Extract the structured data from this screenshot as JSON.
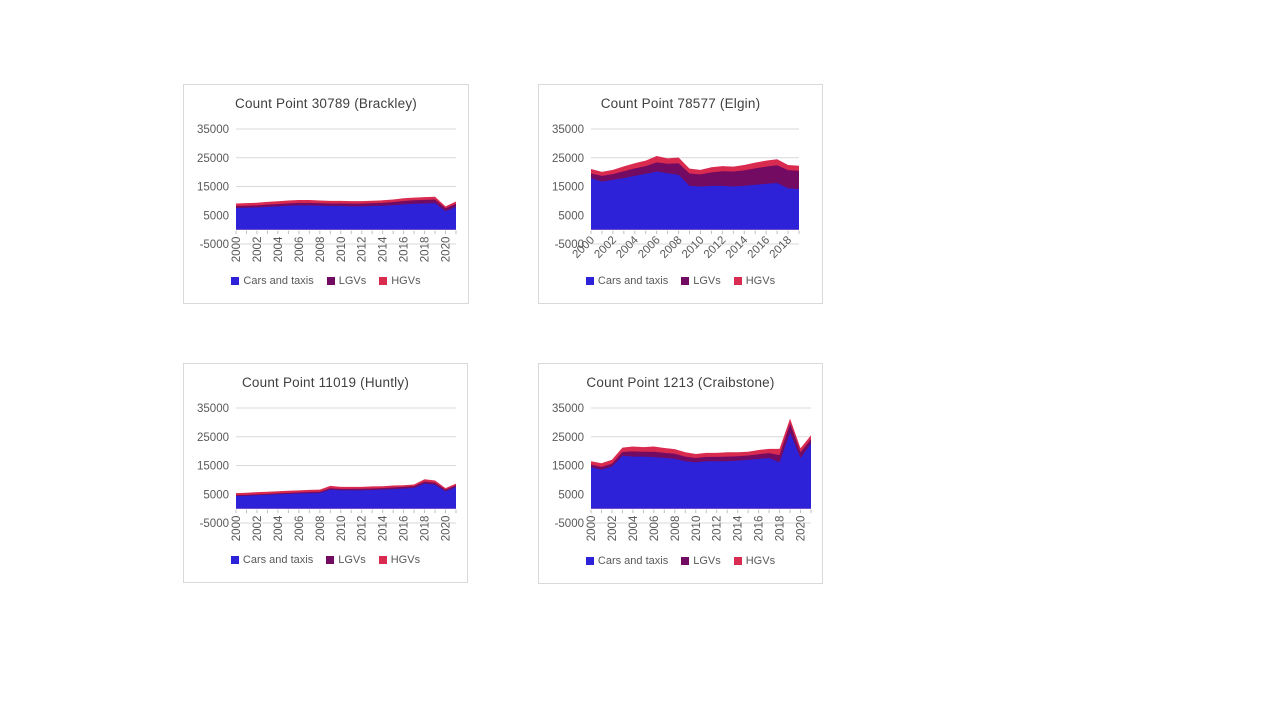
{
  "page": {
    "background": "#ffffff"
  },
  "colors": {
    "cars": "#2d22d8",
    "lgvs": "#740b63",
    "hgvs": "#d92a50",
    "grid": "#d9d9d9",
    "tick": "#bfbfbf",
    "axis_text": "#595959",
    "title_text": "#404040",
    "chart_border": "#d9d9d9"
  },
  "chart_data": [
    {
      "type": "area",
      "stacked": true,
      "title": "Count Point 30789 (Brackley)",
      "x": [
        2000,
        2001,
        2002,
        2003,
        2004,
        2005,
        2006,
        2007,
        2008,
        2009,
        2010,
        2011,
        2012,
        2013,
        2014,
        2015,
        2016,
        2017,
        2018,
        2019,
        2020,
        2021
      ],
      "series": [
        {
          "name": "Cars and taxis",
          "color": "#2d22d8",
          "values": [
            7500,
            7600,
            7700,
            7900,
            8100,
            8300,
            8400,
            8400,
            8300,
            8200,
            8200,
            8100,
            8100,
            8200,
            8300,
            8500,
            8800,
            9000,
            9100,
            9200,
            6400,
            7900
          ]
        },
        {
          "name": "LGVs",
          "color": "#740b63",
          "values": [
            700,
            700,
            750,
            800,
            800,
            850,
            900,
            900,
            900,
            900,
            900,
            950,
            950,
            1000,
            1000,
            1100,
            1150,
            1200,
            1250,
            1300,
            1000,
            1100
          ]
        },
        {
          "name": "HGVs",
          "color": "#d92a50",
          "values": [
            900,
            900,
            900,
            950,
            950,
            1000,
            1000,
            1000,
            950,
            900,
            900,
            850,
            850,
            850,
            900,
            900,
            950,
            950,
            950,
            950,
            700,
            800
          ]
        }
      ],
      "ylim": [
        -5000,
        35000
      ],
      "yticks": [
        35000,
        25000,
        15000,
        5000,
        -5000
      ],
      "xtick_labels": [
        "2000",
        "2002",
        "2004",
        "2006",
        "2008",
        "2010",
        "2012",
        "2014",
        "2016",
        "2018",
        "2020"
      ],
      "x_label_angle": -90,
      "gridlines": true,
      "legend_position": "bottom"
    },
    {
      "type": "area",
      "stacked": true,
      "title": "Count Point 78577 (Elgin)",
      "x": [
        2000,
        2001,
        2002,
        2003,
        2004,
        2005,
        2006,
        2007,
        2008,
        2009,
        2010,
        2011,
        2012,
        2013,
        2014,
        2015,
        2016,
        2017,
        2018,
        2019
      ],
      "series": [
        {
          "name": "Cars and taxis",
          "color": "#2d22d8",
          "values": [
            17900,
            16700,
            17300,
            17900,
            18700,
            19400,
            20200,
            19600,
            19100,
            15200,
            15000,
            15200,
            15200,
            15000,
            15200,
            15600,
            15900,
            16200,
            14400,
            14100
          ]
        },
        {
          "name": "LGVs",
          "color": "#740b63",
          "values": [
            1600,
            2000,
            2000,
            2400,
            2600,
            2700,
            3200,
            3300,
            4000,
            4300,
            4200,
            4700,
            5100,
            5200,
            5400,
            5700,
            6000,
            6200,
            6300,
            6400
          ]
        },
        {
          "name": "HGVs",
          "color": "#d92a50",
          "values": [
            1600,
            1400,
            1500,
            1700,
            1800,
            1900,
            2200,
            1900,
            2000,
            1700,
            1600,
            1800,
            1800,
            1700,
            1900,
            2000,
            2100,
            2100,
            1800,
            1700
          ]
        }
      ],
      "ylim": [
        -5000,
        35000
      ],
      "yticks": [
        35000,
        25000,
        15000,
        5000,
        -5000
      ],
      "xtick_labels": [
        "2000",
        "2002",
        "2004",
        "2006",
        "2008",
        "2010",
        "2012",
        "2014",
        "2016",
        "2018"
      ],
      "x_label_angle": -45,
      "gridlines": true,
      "legend_position": "bottom"
    },
    {
      "type": "area",
      "stacked": true,
      "title": "Count Point 11019 (Huntly)",
      "x": [
        2000,
        2001,
        2002,
        2003,
        2004,
        2005,
        2006,
        2007,
        2008,
        2009,
        2010,
        2011,
        2012,
        2013,
        2014,
        2015,
        2016,
        2017,
        2018,
        2019,
        2020,
        2021
      ],
      "series": [
        {
          "name": "Cars and taxis",
          "color": "#2d22d8",
          "values": [
            4400,
            4500,
            4650,
            4800,
            5000,
            5100,
            5250,
            5350,
            5450,
            6600,
            6400,
            6400,
            6400,
            6500,
            6600,
            6800,
            6950,
            7200,
            8700,
            8300,
            6000,
            7500
          ]
        },
        {
          "name": "LGVs",
          "color": "#740b63",
          "values": [
            300,
            300,
            320,
            340,
            360,
            380,
            400,
            420,
            440,
            500,
            480,
            480,
            500,
            520,
            540,
            560,
            600,
            620,
            700,
            700,
            550,
            600
          ]
        },
        {
          "name": "HGVs",
          "color": "#d92a50",
          "values": [
            700,
            700,
            750,
            750,
            700,
            750,
            700,
            750,
            700,
            800,
            700,
            700,
            680,
            700,
            650,
            700,
            600,
            550,
            800,
            800,
            600,
            600
          ]
        }
      ],
      "ylim": [
        -5000,
        35000
      ],
      "yticks": [
        35000,
        25000,
        15000,
        5000,
        -5000
      ],
      "xtick_labels": [
        "2000",
        "2002",
        "2004",
        "2006",
        "2008",
        "2010",
        "2012",
        "2014",
        "2016",
        "2018",
        "2020"
      ],
      "x_label_angle": -90,
      "gridlines": true,
      "legend_position": "bottom"
    },
    {
      "type": "area",
      "stacked": true,
      "title": "Count Point 1213 (Craibstone)",
      "x": [
        2000,
        2001,
        2002,
        2003,
        2004,
        2005,
        2006,
        2007,
        2008,
        2009,
        2010,
        2011,
        2012,
        2013,
        2014,
        2015,
        2016,
        2017,
        2018,
        2019,
        2020,
        2021
      ],
      "series": [
        {
          "name": "Cars and taxis",
          "color": "#2d22d8",
          "values": [
            14400,
            13500,
            14600,
            18400,
            18100,
            18100,
            17900,
            17600,
            17300,
            16500,
            16100,
            16500,
            16500,
            16500,
            16700,
            17000,
            17300,
            17600,
            16100,
            26500,
            17600,
            22700
          ]
        },
        {
          "name": "LGVs",
          "color": "#740b63",
          "values": [
            900,
            1000,
            1000,
            1300,
            1800,
            1700,
            1900,
            1800,
            1800,
            1600,
            1500,
            1500,
            1500,
            1600,
            1500,
            1500,
            1600,
            1700,
            2500,
            3000,
            2000,
            1400
          ]
        },
        {
          "name": "HGVs",
          "color": "#d92a50",
          "values": [
            1200,
            1300,
            1400,
            1500,
            1700,
            1600,
            1800,
            1700,
            1600,
            1500,
            1400,
            1400,
            1400,
            1500,
            1400,
            1300,
            1500,
            1500,
            2200,
            1800,
            1400,
            1400
          ]
        }
      ],
      "ylim": [
        -5000,
        35000
      ],
      "yticks": [
        35000,
        25000,
        15000,
        5000,
        -5000
      ],
      "xtick_labels": [
        "2000",
        "2002",
        "2004",
        "2006",
        "2008",
        "2010",
        "2012",
        "2014",
        "2016",
        "2018",
        "2020"
      ],
      "x_label_angle": -90,
      "gridlines": true,
      "legend_position": "bottom"
    }
  ]
}
